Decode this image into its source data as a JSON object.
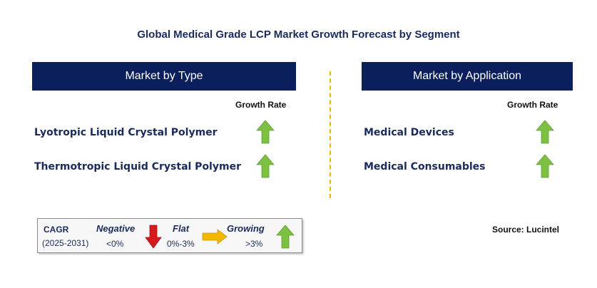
{
  "title": "Global Medical Grade LCP Market Growth Forecast by Segment",
  "left_panel": {
    "header": "Market by Type",
    "growth_rate_label": "Growth Rate",
    "rows": [
      {
        "label": "Lyotropic Liquid Crystal Polymer",
        "trend": "growing"
      },
      {
        "label": "Thermotropic Liquid Crystal Polymer",
        "trend": "growing"
      }
    ]
  },
  "right_panel": {
    "header": "Market by Application",
    "growth_rate_label": "Growth Rate",
    "rows": [
      {
        "label": "Medical Devices",
        "trend": "growing"
      },
      {
        "label": "Medical Consumables",
        "trend": "growing"
      }
    ]
  },
  "legend": {
    "cagr_label": "CAGR",
    "period": "(2025-2031)",
    "negative": {
      "label": "Negative",
      "range": "<0%"
    },
    "flat": {
      "label": "Flat",
      "range": "0%-3%"
    },
    "growing": {
      "label": "Growing",
      "range": ">3%"
    }
  },
  "source": "Source: Lucintel",
  "colors": {
    "header_bg": "#0b1f5c",
    "growing": "#7cc142",
    "negative": "#d7191c",
    "flat": "#f5b800",
    "divider": "#f2b400"
  },
  "icons": {
    "growing": "up-arrow-icon",
    "negative": "down-arrow-icon",
    "flat": "right-arrow-icon"
  }
}
